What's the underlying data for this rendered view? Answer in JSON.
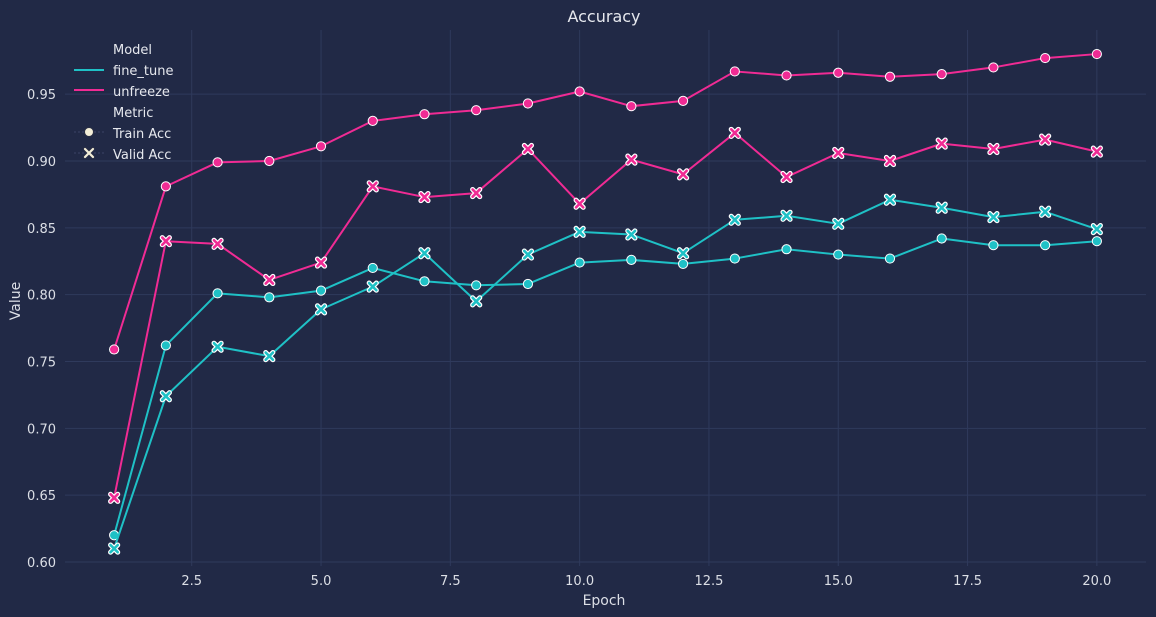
{
  "chart_data": {
    "type": "line",
    "title": "Accuracy",
    "xlabel": "Epoch",
    "ylabel": "Value",
    "xlim": [
      0.05,
      20.95
    ],
    "ylim": [
      0.597,
      0.998
    ],
    "xticks": [
      2.5,
      5.0,
      7.5,
      10.0,
      12.5,
      15.0,
      17.5,
      20.0
    ],
    "xtick_labels": [
      "2.5",
      "5.0",
      "7.5",
      "10.0",
      "12.5",
      "15.0",
      "17.5",
      "20.0"
    ],
    "yticks": [
      0.6,
      0.65,
      0.7,
      0.75,
      0.8,
      0.85,
      0.9,
      0.95
    ],
    "ytick_labels": [
      "0.60",
      "0.65",
      "0.70",
      "0.75",
      "0.80",
      "0.85",
      "0.90",
      "0.95"
    ],
    "grid": true,
    "legend_placement": "top-left",
    "x": [
      1,
      2,
      3,
      4,
      5,
      6,
      7,
      8,
      9,
      10,
      11,
      12,
      13,
      14,
      15,
      16,
      17,
      18,
      19,
      20
    ],
    "series": [
      {
        "model": "fine_tune",
        "metric": "Train Acc",
        "color": "#1fc1c6",
        "marker": "circle",
        "values": [
          0.62,
          0.762,
          0.801,
          0.798,
          0.803,
          0.82,
          0.81,
          0.807,
          0.808,
          0.824,
          0.826,
          0.823,
          0.827,
          0.834,
          0.83,
          0.827,
          0.842,
          0.837,
          0.837,
          0.84
        ]
      },
      {
        "model": "fine_tune",
        "metric": "Valid Acc",
        "color": "#1fc1c6",
        "marker": "x",
        "values": [
          0.61,
          0.724,
          0.761,
          0.754,
          0.789,
          0.806,
          0.831,
          0.795,
          0.83,
          0.847,
          0.845,
          0.831,
          0.856,
          0.859,
          0.853,
          0.871,
          0.865,
          0.858,
          0.862,
          0.849
        ]
      },
      {
        "model": "unfreeze",
        "metric": "Train Acc",
        "color": "#f02b94",
        "marker": "circle",
        "values": [
          0.759,
          0.881,
          0.899,
          0.9,
          0.911,
          0.93,
          0.935,
          0.938,
          0.943,
          0.952,
          0.941,
          0.945,
          0.967,
          0.964,
          0.966,
          0.963,
          0.965,
          0.97,
          0.977,
          0.98
        ]
      },
      {
        "model": "unfreeze",
        "metric": "Valid Acc",
        "color": "#f02b94",
        "marker": "x",
        "values": [
          0.648,
          0.84,
          0.838,
          0.811,
          0.824,
          0.881,
          0.873,
          0.876,
          0.909,
          0.868,
          0.901,
          0.89,
          0.921,
          0.888,
          0.906,
          0.9,
          0.913,
          0.909,
          0.916,
          0.907
        ]
      }
    ],
    "legend": {
      "model_title": "Model",
      "models": [
        {
          "label": "fine_tune",
          "color": "#1fc1c6"
        },
        {
          "label": "unfreeze",
          "color": "#f02b94"
        }
      ],
      "metric_title": "Metric",
      "metrics": [
        {
          "label": "Train Acc",
          "marker": "circle"
        },
        {
          "label": "Valid Acc",
          "marker": "x"
        }
      ]
    }
  }
}
